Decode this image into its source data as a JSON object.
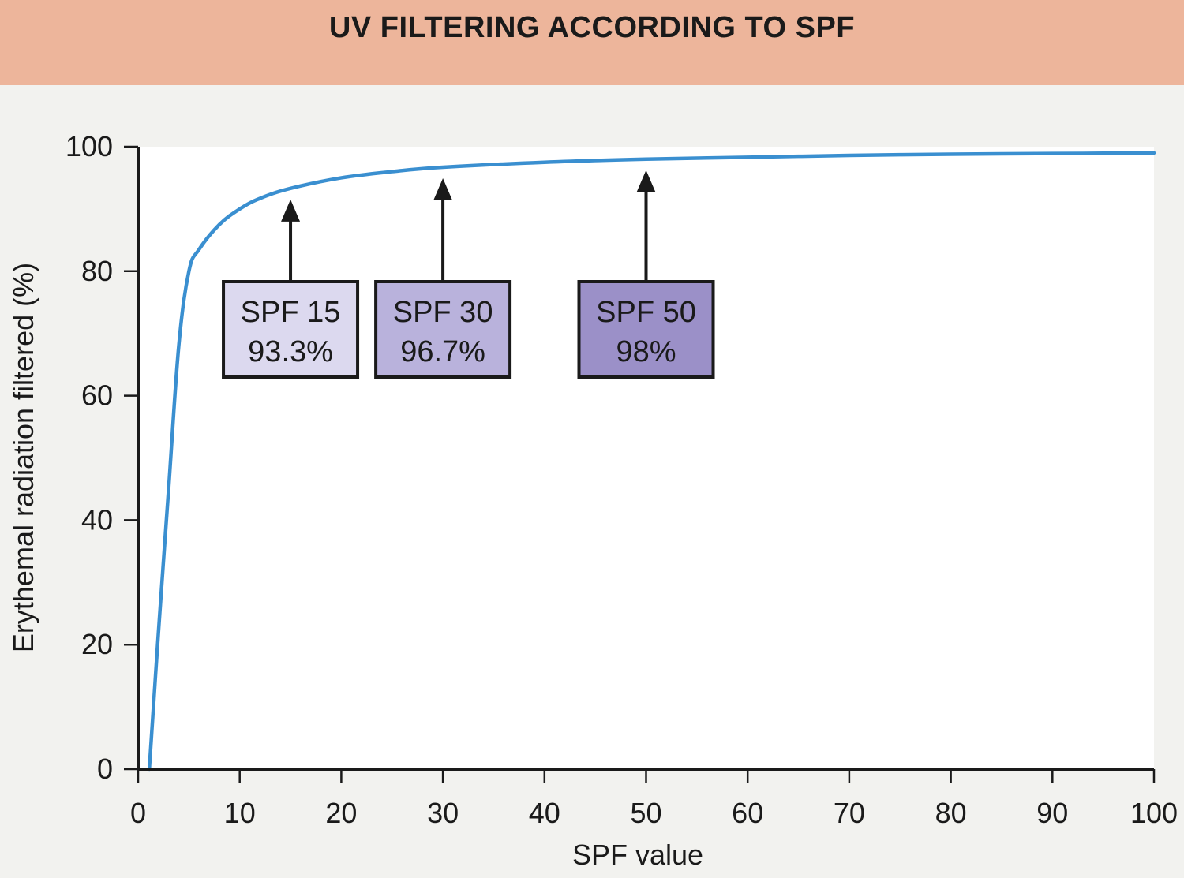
{
  "header": {
    "title": "UV FILTERING ACCORDING TO SPF"
  },
  "chart_data": {
    "type": "line",
    "title": "UV FILTERING ACCORDING TO SPF",
    "xlabel": "SPF value",
    "ylabel": "Erythemal radiation filtered (%)",
    "xlim": [
      0,
      100
    ],
    "ylim": [
      0,
      100
    ],
    "x_ticks": [
      "0",
      "10",
      "20",
      "30",
      "40",
      "50",
      "60",
      "70",
      "80",
      "90",
      "100"
    ],
    "y_ticks": [
      "0",
      "20",
      "40",
      "60",
      "80",
      "100"
    ],
    "grid": false,
    "series": [
      {
        "color": "#3a8fd0",
        "x": [
          1.1,
          2,
          3,
          4,
          5,
          6,
          8,
          10,
          12,
          15,
          20,
          25,
          30,
          40,
          50,
          60,
          70,
          80,
          90,
          100
        ],
        "y": [
          0,
          22,
          45,
          68,
          80,
          83.5,
          87.5,
          90,
          91.7,
          93.3,
          95,
          96,
          96.7,
          97.5,
          98,
          98.3,
          98.6,
          98.8,
          98.9,
          99
        ]
      }
    ],
    "annotations": [
      {
        "x": 15,
        "y": 93.3,
        "label": "SPF 15",
        "value": "93.3%",
        "color": "#dcd9ef"
      },
      {
        "x": 30,
        "y": 96.7,
        "label": "SPF 30",
        "value": "96.7%",
        "color": "#b9b2dc"
      },
      {
        "x": 50,
        "y": 98,
        "label": "SPF 50",
        "value": "98%",
        "color": "#9b90c8"
      }
    ]
  }
}
